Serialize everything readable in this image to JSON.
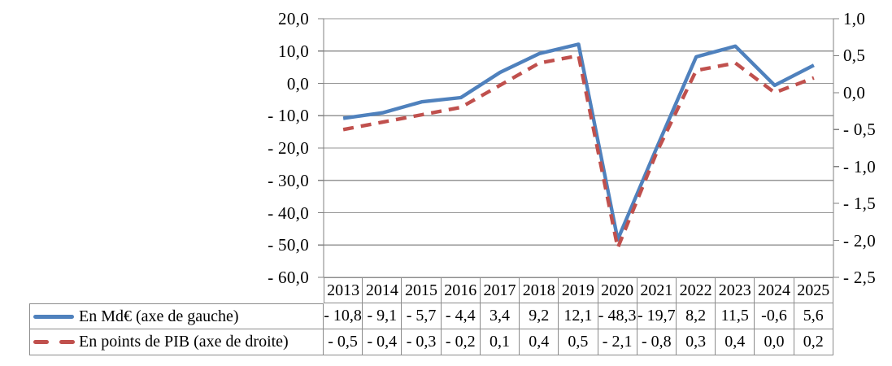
{
  "chart_data": {
    "type": "line",
    "categories": [
      "2013",
      "2014",
      "2015",
      "2016",
      "2017",
      "2018",
      "2019",
      "2020",
      "2021",
      "2022",
      "2023",
      "2024",
      "2025"
    ],
    "series": [
      {
        "name": "En Md€ (axe de gauche)",
        "axis": "left",
        "color": "#4F81BD",
        "line_style": "solid",
        "values": [
          -10.8,
          -9.1,
          -5.7,
          -4.4,
          3.4,
          9.2,
          12.1,
          -48.3,
          -19.7,
          8.2,
          11.5,
          -0.6,
          5.6
        ],
        "display_values": [
          "- 10,8",
          "- 9,1",
          "- 5,7",
          "- 4,4",
          "3,4",
          "9,2",
          "12,1",
          "- 48,3",
          "- 19,7",
          "8,2",
          "11,5",
          "-0,6",
          "5,6"
        ]
      },
      {
        "name": "En points de PIB (axe de droite)",
        "axis": "right",
        "color": "#C0504D",
        "line_style": "dashed",
        "values": [
          -0.5,
          -0.4,
          -0.3,
          -0.2,
          0.1,
          0.4,
          0.5,
          -2.1,
          -0.8,
          0.3,
          0.4,
          0.0,
          0.2
        ],
        "display_values": [
          "- 0,5",
          "- 0,4",
          "- 0,3",
          "- 0,2",
          "0,1",
          "0,4",
          "0,5",
          "- 2,1",
          "- 0,8",
          "0,3",
          "0,4",
          "0,0",
          "0,2"
        ]
      }
    ],
    "left_axis": {
      "range": [
        -60,
        20
      ],
      "step": 10,
      "tick_labels": [
        "20,0",
        "10,0",
        "0,0",
        "- 10,0",
        "- 20,0",
        "- 30,0",
        "- 40,0",
        "- 50,0",
        "- 60,0"
      ]
    },
    "right_axis": {
      "range": [
        -2.5,
        1.0
      ],
      "step": 0.5,
      "tick_labels": [
        "1,0",
        "0,5",
        "0,0",
        "- 0,5",
        "- 1,0",
        "- 1,5",
        "- 2,0",
        "- 2,5"
      ]
    },
    "grid": true,
    "legend_position": "data-table-left",
    "title": "",
    "xlabel": "",
    "ylabel": ""
  },
  "colors": {
    "grid": "#969696",
    "axis": "#808080",
    "table_border": "#8C8C8C",
    "text": "#000000",
    "background": "#FFFFFF"
  }
}
